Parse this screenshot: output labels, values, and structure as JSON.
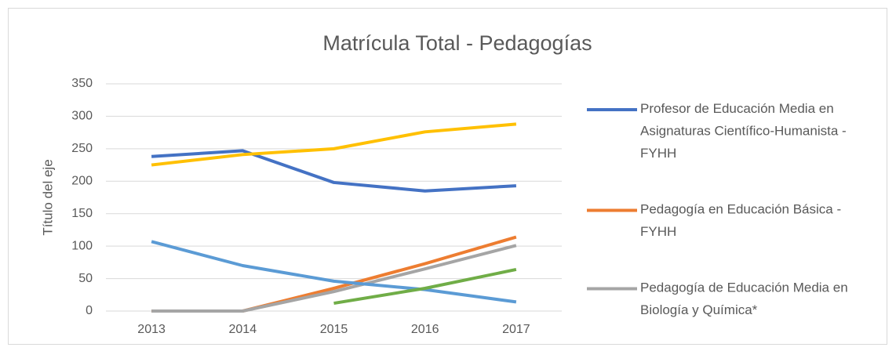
{
  "chart_data": {
    "type": "line",
    "title": "Matrícula Total - Pedagogías",
    "ylabel": "Título del eje",
    "categories": [
      "2013",
      "2014",
      "2015",
      "2016",
      "2017"
    ],
    "series": [
      {
        "name": "Profesor de Educación Media en Asignaturas Científico-Humanista - FYHH",
        "color": "#4472c4",
        "values": [
          238,
          247,
          198,
          185,
          193
        ]
      },
      {
        "name": "Pedagogía en Educación Básica - FYHH",
        "color": "#ed7d31",
        "values": [
          0,
          0,
          35,
          73,
          114
        ]
      },
      {
        "name": "Pedagogía de Educación Media en Biología y Química*",
        "color": "#a5a5a5",
        "values": [
          0,
          0,
          30,
          65,
          101
        ]
      },
      {
        "color": "#ffc000",
        "values": [
          225,
          241,
          250,
          276,
          288
        ]
      },
      {
        "color": "#5b9bd5",
        "values": [
          107,
          70,
          46,
          33,
          14
        ]
      },
      {
        "color": "#70ad47",
        "values": [
          null,
          null,
          12,
          35,
          64
        ]
      }
    ],
    "ylim": [
      0,
      350
    ],
    "yticks": [
      0,
      50,
      100,
      150,
      200,
      250,
      300,
      350
    ],
    "grid": true,
    "legend": "right"
  }
}
